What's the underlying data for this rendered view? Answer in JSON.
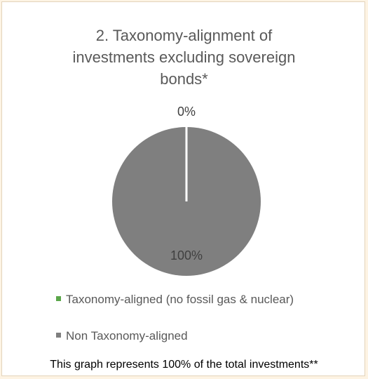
{
  "chart_data": {
    "type": "pie",
    "title_lines": [
      "2. Taxonomy-alignment of",
      "investments excluding sovereign",
      "bonds*"
    ],
    "slices": [
      {
        "name": "Taxonomy-aligned (no fossil gas & nuclear)",
        "value": 0,
        "label": "0%",
        "color": "#5aa64a"
      },
      {
        "name": "Non Taxonomy-aligned",
        "value": 100,
        "label": "100%",
        "color": "#7f7f7f"
      }
    ],
    "legend_position": "bottom"
  },
  "footnote": "This graph represents 100% of the total investments**"
}
